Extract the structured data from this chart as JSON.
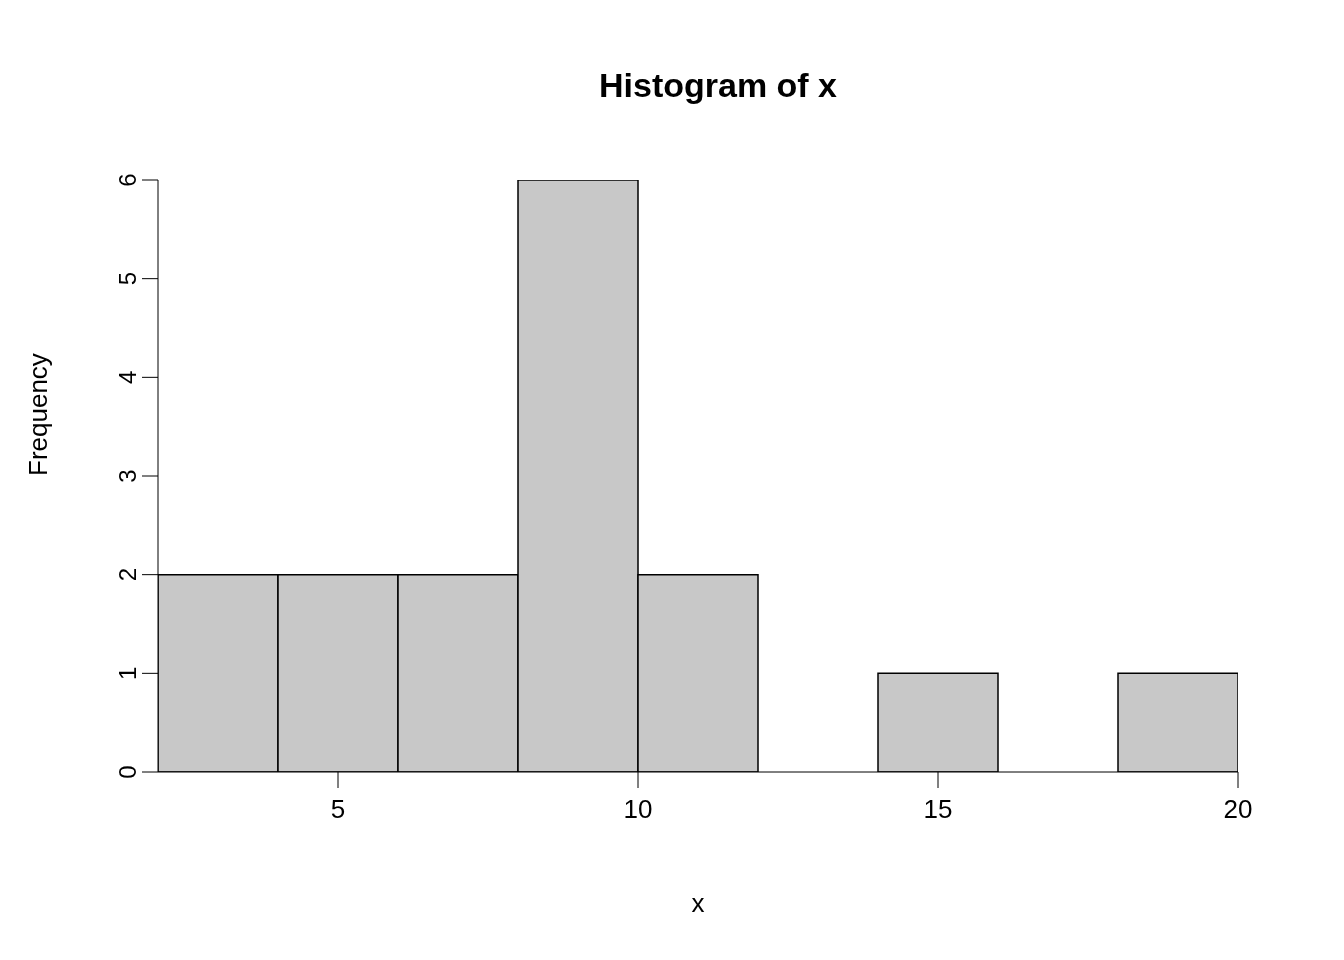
{
  "chart_data": {
    "type": "histogram",
    "title": "Histogram of x",
    "xlabel": "x",
    "ylabel": "Frequency",
    "bins": [
      2,
      4,
      6,
      8,
      10,
      12,
      14,
      16,
      18,
      20
    ],
    "values": [
      2,
      2,
      2,
      6,
      2,
      0,
      1,
      0,
      1
    ],
    "color": "#c8c8c8",
    "xlim": [
      2,
      20
    ],
    "xticks": [
      5,
      10,
      15,
      20
    ],
    "ylim": [
      0,
      6
    ],
    "yticks": [
      0,
      1,
      2,
      3,
      4,
      5,
      6
    ]
  }
}
